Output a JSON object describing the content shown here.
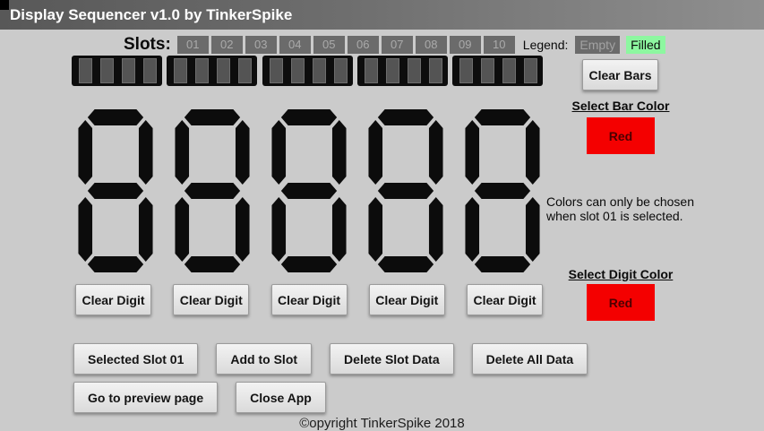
{
  "title_bar": {
    "title": "Display Sequencer v1.0 by TinkerSpike"
  },
  "slots": {
    "label": "Slots:",
    "items": [
      "01",
      "02",
      "03",
      "04",
      "05",
      "06",
      "07",
      "08",
      "09",
      "10"
    ],
    "legend": {
      "label": "Legend:",
      "empty": "Empty",
      "filled": "Filled"
    }
  },
  "bar_section": {
    "bar_count": 5,
    "clear_button_label": "Clear Bars",
    "select_color_label": "Select Bar Color",
    "color_button_label": "Red"
  },
  "digit_section": {
    "digit_count": 5,
    "clear_button_label": "Clear Digit",
    "select_color_label": "Select Digit Color",
    "color_button_label": "Red",
    "note_line1": "Colors can only be chosen",
    "note_line2": "when slot 01 is selected."
  },
  "actions": {
    "selected_slot_label": "Selected Slot 01",
    "add_to_slot_label": "Add to Slot",
    "delete_slot_data_label": "Delete Slot Data",
    "delete_all_data_label": "Delete All Data",
    "go_preview_label": "Go to preview page",
    "close_app_label": "Close App"
  },
  "footer": {
    "copyright": "©opyright TinkerSpike 2018"
  },
  "colors": {
    "accent_red": "#f40000",
    "filled_green": "#8df7a0",
    "slot_gray": "#6b6b6b",
    "display_black": "#0d0d0d"
  }
}
